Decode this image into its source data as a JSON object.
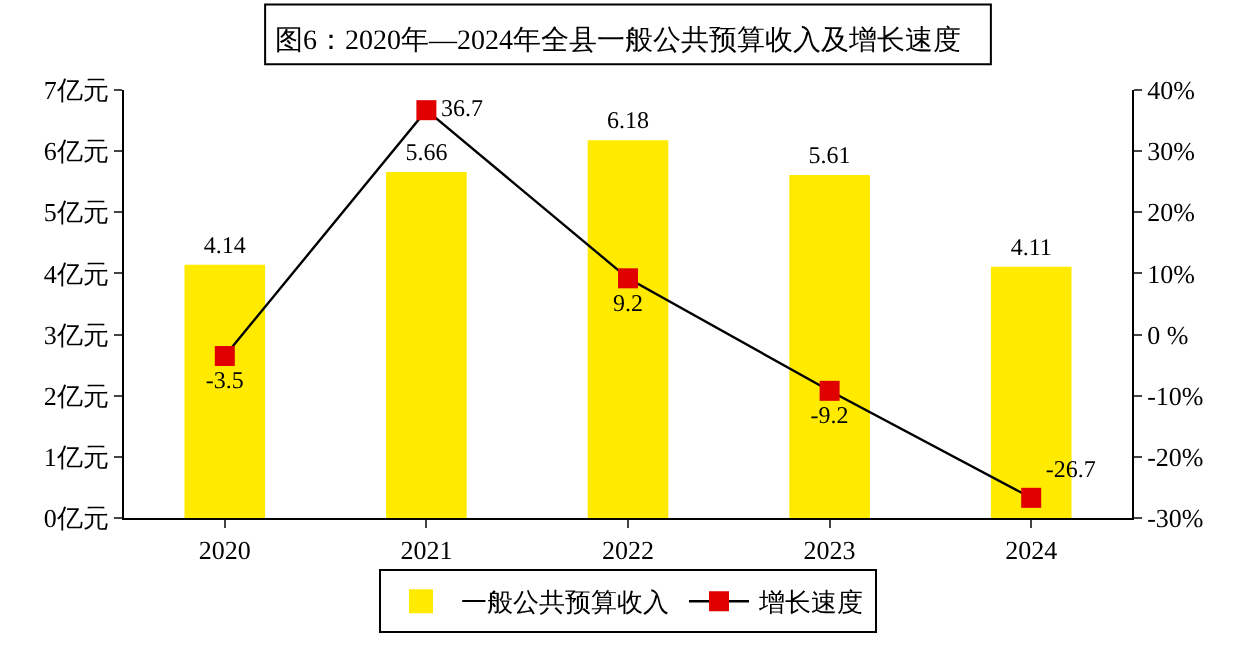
{
  "chart_data": {
    "type": "bar",
    "title": "图6：2020年—2024年全县一般公共预算收入及增长速度",
    "categories": [
      "2020",
      "2021",
      "2022",
      "2023",
      "2024"
    ],
    "series": [
      {
        "name": "一般公共预算收入",
        "color": "#ffea00",
        "values": [
          4.14,
          5.66,
          6.18,
          5.61,
          4.11
        ]
      },
      {
        "name": "增长速度",
        "type": "line",
        "axis": "y2",
        "color": "#000000",
        "colors": [
          "#e00000",
          "#e00000",
          "#e00000",
          "#e00000",
          "#e00000"
        ],
        "marker": "square",
        "values": [
          -3.5,
          36.7,
          9.2,
          -9.2,
          -26.7
        ]
      }
    ],
    "ylim": [
      0,
      7
    ],
    "yticks": [
      {
        "value": 0,
        "label": "0亿元"
      },
      {
        "value": 1,
        "label": "1亿元"
      },
      {
        "value": 2,
        "label": "2亿元"
      },
      {
        "value": 3,
        "label": "3亿元"
      },
      {
        "value": 4,
        "label": "4亿元"
      },
      {
        "value": 5,
        "label": "5亿元"
      },
      {
        "value": 6,
        "label": "6亿元"
      },
      {
        "value": 7,
        "label": "7亿元"
      }
    ],
    "y2lim": [
      -30,
      40
    ],
    "y2ticks": [
      {
        "value": -30,
        "label": "-30%"
      },
      {
        "value": -20,
        "label": "-20%"
      },
      {
        "value": -10,
        "label": "-10%"
      },
      {
        "value": 0,
        "label": "0 %"
      },
      {
        "value": 10,
        "label": "10%"
      },
      {
        "value": 20,
        "label": "20%"
      },
      {
        "value": 30,
        "label": "30%"
      },
      {
        "value": 40,
        "label": "40%"
      }
    ],
    "data_labels": true,
    "grid": false,
    "legend": "bottom"
  }
}
